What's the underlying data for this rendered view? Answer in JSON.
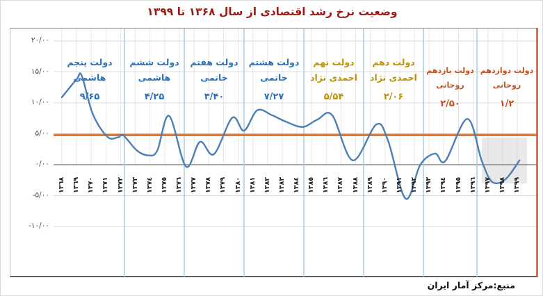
{
  "title": "وضعیت نرخ رشد اقتصادی از سال ۱۳۶۸ تا ۱۳۹۹",
  "source": "منبع:مرکز آمار ایران",
  "colors": {
    "title": "#9e1a15",
    "growth_line": "#4d7fb5",
    "reference_line": "#e2762d",
    "right_border": "#cd5b2a",
    "divider": "#a9c6df",
    "grid": "#dadada",
    "year_grid": "#e7e7e7",
    "zero_axis": "#6f6f6f",
    "blue_label": "#2a70b8",
    "gold_label": "#bf9000",
    "orange_label": "#c4511f",
    "highlight_box": "#cccccc"
  },
  "y_axis": {
    "labels": [
      "۲۰/۰۰",
      "۱۵/۰۰",
      "۱۰/۰۰",
      "۵/۰۰",
      "۰/۰۰",
      "-۵/۰۰",
      "-۱۰/۰۰"
    ],
    "values": [
      20,
      15,
      10,
      5,
      0,
      -5,
      -10
    ]
  },
  "x_axis": {
    "years": [
      1368,
      1369,
      1370,
      1371,
      1372,
      1373,
      1374,
      1375,
      1376,
      1377,
      1378,
      1379,
      1380,
      1381,
      1382,
      1383,
      1384,
      1385,
      1386,
      1387,
      1388,
      1389,
      1390,
      1391,
      1392,
      1393,
      1394,
      1395,
      1396,
      1397,
      1398,
      1399
    ],
    "labels": [
      "١٣٦٨",
      "١٣٦٩",
      "١٣٧٠",
      "١٣٧١",
      "١٣٧٢",
      "١٣٧٣",
      "١٣٧٤",
      "١٣٧٥",
      "١٣٧٦",
      "١٣٧٧",
      "١٣٧٨",
      "١٣٧٩",
      "١٣٨٠",
      "١٣٨١",
      "١٣٨٢",
      "١٣٨٣",
      "١٣٨٤",
      "١٣٨٥",
      "١٣٨٦",
      "١٣٨٧",
      "١٣٨٨",
      "١٣٨٩",
      "١٣٩٠",
      "١٣٩١",
      "١٣٩٢",
      "١٣٩٣",
      "١٣٩٤",
      "١٣٩٥",
      "١٣٩٦",
      "١٣٩٧",
      "١٣٩٨",
      "١٣٩٩"
    ]
  },
  "governments": [
    {
      "name_lines": [
        "دولت پنجم",
        "هاشمی"
      ],
      "value_label": "۹/۶۵",
      "value": 9.65,
      "period": [
        1368,
        1372
      ],
      "color": "#2a70b8"
    },
    {
      "name_lines": [
        "دولت ششم",
        "هاشمی"
      ],
      "value_label": "۴/۲۵",
      "value": 4.25,
      "period": [
        1372,
        1376
      ],
      "color": "#2a70b8"
    },
    {
      "name_lines": [
        "دولت هفتم",
        "خاتمی"
      ],
      "value_label": "۳/۴۰",
      "value": 3.4,
      "period": [
        1376,
        1380
      ],
      "color": "#2a70b8"
    },
    {
      "name_lines": [
        "دولت هشتم",
        "خاتمی"
      ],
      "value_label": "۷/۲۷",
      "value": 7.27,
      "period": [
        1380,
        1384
      ],
      "color": "#2a70b8"
    },
    {
      "name_lines": [
        "دولت نهم",
        "احمدی نژاد"
      ],
      "value_label": "۵/۵۴",
      "value": 5.54,
      "period": [
        1384,
        1388
      ],
      "color": "#bf9000"
    },
    {
      "name_lines": [
        "دولت دهم",
        "احمدی نژاد"
      ],
      "value_label": "۲/۰۶",
      "value": 2.06,
      "period": [
        1388,
        1392
      ],
      "color": "#bf9000"
    },
    {
      "name_lines": [
        "دولت یازدهم",
        "روحانی"
      ],
      "value_label": "۲/۵۰",
      "value": 2.5,
      "period": [
        1392,
        1396
      ],
      "color": "#c4511f"
    },
    {
      "name_lines": [
        "دولت دوازدهم",
        "روحانی"
      ],
      "value_label": "۱/۲",
      "value": 1.2,
      "period": [
        1396,
        1399
      ],
      "color": "#c4511f"
    }
  ],
  "chart_data": {
    "type": "line",
    "title": "وضعیت نرخ رشد اقتصادی از سال ۱۳۶۸ تا ۱۳۹۹",
    "xlabel": "",
    "ylabel": "",
    "ylim": [
      -10,
      20
    ],
    "grid": true,
    "legend": false,
    "reference_line": 4.8,
    "x": [
      1368,
      1369,
      1370,
      1371,
      1372,
      1373,
      1374,
      1375,
      1376,
      1377,
      1378,
      1379,
      1380,
      1381,
      1382,
      1383,
      1384,
      1385,
      1386,
      1387,
      1388,
      1389,
      1390,
      1391,
      1392,
      1393,
      1394,
      1395,
      1396,
      1397,
      1398,
      1399
    ],
    "values": [
      10.9,
      13.9,
      8.2,
      4.5,
      4.7,
      2.3,
      1.6,
      7.5,
      1.0,
      3.5,
      1.8,
      7.2,
      6.0,
      8.5,
      8.1,
      7.0,
      6.2,
      6.8,
      7.9,
      6.5,
      1.0,
      6.0,
      3.7,
      -4.8,
      -1.0,
      1.5,
      0.7,
      5.2,
      3.0,
      -2.8,
      -2.4,
      0.6
    ],
    "smooth_curve_anchors": [
      [
        1368,
        10.9
      ],
      [
        1369,
        13.8
      ],
      [
        1369.35,
        14.4
      ],
      [
        1370.1,
        8.2
      ],
      [
        1371.1,
        4.5
      ],
      [
        1371.8,
        4.4
      ],
      [
        1372.2,
        4.7
      ],
      [
        1373.1,
        2.3
      ],
      [
        1373.9,
        1.5
      ],
      [
        1374.5,
        2.3
      ],
      [
        1375.3,
        7.9
      ],
      [
        1376.45,
        -0.3
      ],
      [
        1377.4,
        3.7
      ],
      [
        1378.35,
        1.7
      ],
      [
        1379.6,
        7.6
      ],
      [
        1380.4,
        5.5
      ],
      [
        1381.3,
        8.8
      ],
      [
        1382.3,
        8.0
      ],
      [
        1383.3,
        6.9
      ],
      [
        1384.4,
        6.1
      ],
      [
        1385.4,
        7.3
      ],
      [
        1386.4,
        8.0
      ],
      [
        1387.8,
        0.7
      ],
      [
        1389.4,
        6.5
      ],
      [
        1390.2,
        3.9
      ],
      [
        1391.4,
        -5.5
      ],
      [
        1392.4,
        0.0
      ],
      [
        1393.4,
        1.8
      ],
      [
        1394.1,
        0.6
      ],
      [
        1395.6,
        7.4
      ],
      [
        1396.6,
        0.5
      ],
      [
        1397.3,
        -2.8
      ],
      [
        1398.2,
        -2.35
      ],
      [
        1399.15,
        0.7
      ]
    ]
  }
}
